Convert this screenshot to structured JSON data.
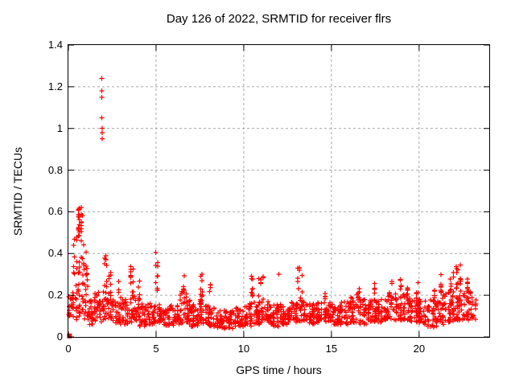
{
  "title": "Day 126 of 2022, SRMTID for receiver flrs",
  "chart_data": {
    "type": "scatter",
    "title": "Day 126 of 2022, SRMTID for receiver flrs",
    "xlabel": "GPS time / hours",
    "ylabel": "SRMTID / TECUs",
    "xlim": [
      0,
      24
    ],
    "ylim": [
      0,
      1.4
    ],
    "xticks": [
      0,
      5,
      10,
      15,
      20
    ],
    "yticks": [
      0,
      0.2,
      0.4,
      0.6,
      0.8,
      1,
      1.2,
      1.4
    ],
    "xtick_labels": [
      "0",
      "5",
      "10",
      "15",
      "20"
    ],
    "ytick_labels": [
      "0",
      "0.2",
      "0.4",
      "0.6",
      "0.8",
      "1",
      "1.2",
      "1.4"
    ],
    "grid": true,
    "grid_style": "dashed",
    "legend": false,
    "series_name": "SRMTID",
    "marker": "plus",
    "marker_color": "#ff0000",
    "grid_color": "#a6a6a6",
    "axis_color": "#000000",
    "background": "#ffffff",
    "seed": 42,
    "outlier_points": [
      [
        1.9,
        1.24
      ],
      [
        1.91,
        1.18
      ],
      [
        1.91,
        1.15
      ],
      [
        1.9,
        1.05
      ],
      [
        1.92,
        1.0
      ],
      [
        1.92,
        0.98
      ],
      [
        1.93,
        0.95
      ],
      [
        12.0,
        0.3
      ]
    ],
    "origin_marker": {
      "t": 0.06,
      "y": 0.005,
      "style": "square"
    },
    "band_bins": [
      [
        0.0,
        0.25,
        16,
        0.1,
        0.2
      ],
      [
        0.25,
        0.5,
        16,
        0.08,
        0.25
      ],
      [
        0.5,
        0.9,
        26,
        0.1,
        0.35
      ],
      [
        0.9,
        1.1,
        13,
        0.08,
        0.3
      ],
      [
        1.1,
        1.5,
        26,
        0.06,
        0.18
      ],
      [
        1.5,
        2.0,
        32,
        0.07,
        0.22
      ],
      [
        2.0,
        2.5,
        32,
        0.08,
        0.22
      ],
      [
        2.5,
        3.0,
        32,
        0.06,
        0.18
      ],
      [
        3.0,
        3.5,
        32,
        0.06,
        0.18
      ],
      [
        3.5,
        4.0,
        32,
        0.07,
        0.22
      ],
      [
        4.0,
        4.5,
        32,
        0.05,
        0.16
      ],
      [
        4.5,
        5.0,
        32,
        0.06,
        0.16
      ],
      [
        5.0,
        5.5,
        30,
        0.06,
        0.16
      ],
      [
        5.5,
        6.0,
        32,
        0.05,
        0.15
      ],
      [
        6.0,
        6.5,
        32,
        0.06,
        0.16
      ],
      [
        6.5,
        7.0,
        32,
        0.06,
        0.18
      ],
      [
        7.0,
        7.5,
        32,
        0.05,
        0.16
      ],
      [
        7.5,
        8.0,
        32,
        0.06,
        0.18
      ],
      [
        8.0,
        8.5,
        32,
        0.05,
        0.14
      ],
      [
        8.5,
        9.0,
        32,
        0.04,
        0.13
      ],
      [
        9.0,
        9.5,
        32,
        0.04,
        0.13
      ],
      [
        9.5,
        10.0,
        32,
        0.05,
        0.14
      ],
      [
        10.0,
        10.5,
        32,
        0.05,
        0.16
      ],
      [
        10.5,
        11.0,
        32,
        0.06,
        0.17
      ],
      [
        11.0,
        11.5,
        32,
        0.06,
        0.17
      ],
      [
        11.5,
        12.0,
        32,
        0.05,
        0.16
      ],
      [
        12.0,
        12.5,
        32,
        0.06,
        0.16
      ],
      [
        12.5,
        13.0,
        32,
        0.07,
        0.17
      ],
      [
        13.0,
        13.5,
        32,
        0.07,
        0.19
      ],
      [
        13.5,
        14.0,
        32,
        0.06,
        0.16
      ],
      [
        14.0,
        14.5,
        32,
        0.07,
        0.17
      ],
      [
        14.5,
        15.0,
        32,
        0.07,
        0.18
      ],
      [
        15.0,
        15.5,
        32,
        0.06,
        0.16
      ],
      [
        15.5,
        16.0,
        32,
        0.06,
        0.17
      ],
      [
        16.0,
        16.5,
        32,
        0.07,
        0.19
      ],
      [
        16.5,
        17.0,
        32,
        0.06,
        0.18
      ],
      [
        17.0,
        17.5,
        32,
        0.07,
        0.18
      ],
      [
        17.5,
        18.0,
        32,
        0.07,
        0.19
      ],
      [
        18.0,
        18.5,
        32,
        0.08,
        0.2
      ],
      [
        18.5,
        19.0,
        32,
        0.08,
        0.21
      ],
      [
        19.0,
        19.5,
        32,
        0.08,
        0.21
      ],
      [
        19.5,
        20.0,
        32,
        0.07,
        0.19
      ],
      [
        20.0,
        20.5,
        32,
        0.06,
        0.18
      ],
      [
        20.5,
        21.0,
        32,
        0.04,
        0.18
      ],
      [
        21.0,
        21.5,
        32,
        0.06,
        0.2
      ],
      [
        21.5,
        22.0,
        32,
        0.07,
        0.22
      ],
      [
        22.0,
        22.5,
        34,
        0.08,
        0.24
      ],
      [
        22.5,
        23.0,
        32,
        0.08,
        0.22
      ],
      [
        23.0,
        23.25,
        14,
        0.08,
        0.2
      ]
    ],
    "spike_clusters": [
      [
        0.3,
        0.55,
        10,
        0.28,
        0.48
      ],
      [
        0.5,
        0.85,
        20,
        0.35,
        0.63
      ],
      [
        0.55,
        0.8,
        8,
        0.48,
        0.6
      ],
      [
        0.85,
        1.1,
        8,
        0.3,
        0.45
      ],
      [
        2.02,
        2.2,
        9,
        0.24,
        0.4
      ],
      [
        2.3,
        2.5,
        6,
        0.2,
        0.31
      ],
      [
        2.85,
        3.0,
        4,
        0.18,
        0.28
      ],
      [
        3.5,
        3.75,
        10,
        0.2,
        0.35
      ],
      [
        4.0,
        4.15,
        5,
        0.16,
        0.28
      ],
      [
        4.85,
        5.1,
        10,
        0.2,
        0.42
      ],
      [
        6.3,
        6.5,
        5,
        0.15,
        0.24
      ],
      [
        6.55,
        6.85,
        8,
        0.18,
        0.3
      ],
      [
        7.4,
        7.7,
        8,
        0.18,
        0.31
      ],
      [
        8.0,
        8.3,
        4,
        0.18,
        0.28
      ],
      [
        10.35,
        10.6,
        9,
        0.18,
        0.3
      ],
      [
        10.85,
        11.1,
        8,
        0.18,
        0.29
      ],
      [
        13.0,
        13.4,
        10,
        0.2,
        0.34
      ],
      [
        14.6,
        14.75,
        4,
        0.17,
        0.22
      ],
      [
        16.15,
        16.6,
        7,
        0.17,
        0.27
      ],
      [
        17.3,
        17.5,
        5,
        0.17,
        0.26
      ],
      [
        18.3,
        18.5,
        6,
        0.19,
        0.28
      ],
      [
        18.75,
        19.0,
        6,
        0.19,
        0.28
      ],
      [
        19.2,
        19.45,
        5,
        0.19,
        0.27
      ],
      [
        19.8,
        20.0,
        5,
        0.18,
        0.26
      ],
      [
        20.85,
        21.0,
        4,
        0.17,
        0.25
      ],
      [
        21.1,
        21.35,
        7,
        0.2,
        0.3
      ],
      [
        21.75,
        22.0,
        8,
        0.2,
        0.31
      ],
      [
        22.05,
        22.45,
        14,
        0.22,
        0.35
      ],
      [
        22.55,
        22.8,
        6,
        0.18,
        0.28
      ]
    ]
  }
}
